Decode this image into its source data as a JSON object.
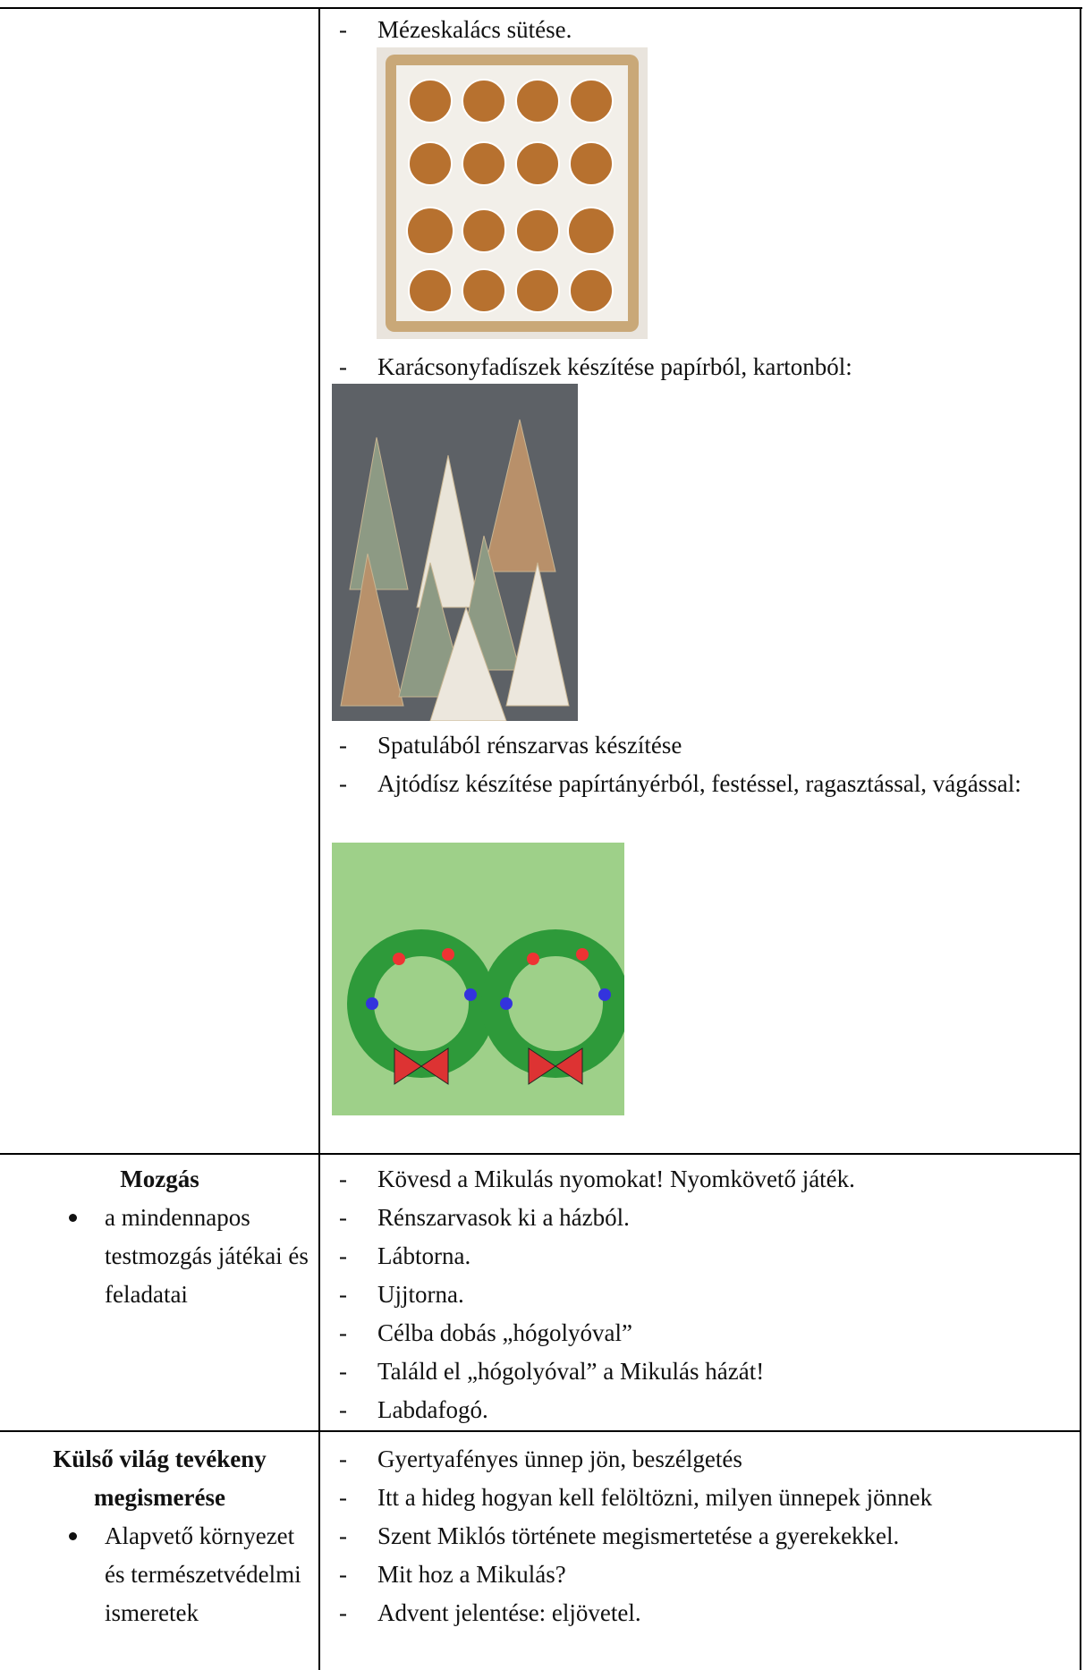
{
  "rows": [
    {
      "activities": [
        "Mézeskalács sütése.",
        "Karácsonyfadíszek készítése papírból, kartonból:",
        "Spatulából rénszarvas készítése",
        "Ajtódísz készítése papírtányérból, festéssel, ragasztással, vágással:"
      ]
    },
    {
      "area": {
        "title": "Mozgás",
        "items": [
          "a mindennapos testmozgás játékai és feladatai"
        ]
      },
      "activities": [
        "Kövesd a Mikulás nyomokat! Nyomkövető játék.",
        "Rénszarvasok ki a házból.",
        "Lábtorna.",
        "Ujjtorna.",
        "Célba dobás „hógolyóval”",
        "Találd el „hógolyóval” a Mikulás házát!",
        "Labdafogó."
      ]
    },
    {
      "area": {
        "title": "Külső világ tevékeny megismerése",
        "items": [
          "Alapvető környezet és természetvédelmi ismeretek"
        ]
      },
      "activities": [
        "Gyertyafényes ünnep jön, beszélgetés",
        "Itt a hideg hogyan kell felöltözni, milyen ünnepek jönnek",
        "Szent Miklós története megismertetése a gyerekekkel.",
        "Mit hoz a Mikulás?",
        "Advent jelentése: eljövetel."
      ]
    }
  ]
}
